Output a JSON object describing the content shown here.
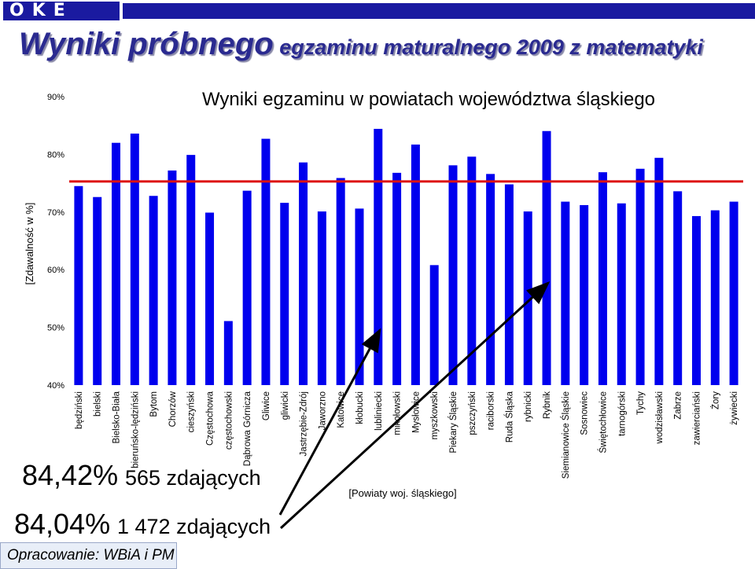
{
  "header": {
    "logo_text": "OKE",
    "title_main": "Wyniki próbnego",
    "title_rest": " egzaminu maturalnego 2009 z matematyki",
    "accent_color": "#1a1aa0"
  },
  "chart_data": {
    "type": "bar",
    "title": "Wyniki egzaminu w powiatach województwa śląskiego",
    "xlabel": "[Powiaty woj. śląskiego]",
    "ylabel": "[Zdawalność w %]",
    "ylim": [
      40,
      90
    ],
    "yticks": [
      "40%",
      "50%",
      "60%",
      "70%",
      "80%",
      "90%"
    ],
    "ytick_values": [
      40,
      50,
      60,
      70,
      80,
      90
    ],
    "reference_line": 75.3,
    "bar_color": "#0000ee",
    "reference_color": "#dd1111",
    "categories": [
      "będziński",
      "bielski",
      "Bielsko-Biała",
      "bieruńsko-lędziński",
      "Bytom",
      "Chorzów",
      "cieszyński",
      "Częstochowa",
      "częstochowski",
      "Dąbrowa Górnicza",
      "Gliwice",
      "gliwicki",
      "Jastrzębie-Zdrój",
      "Jaworzno",
      "Katowice",
      "kłobucki",
      "lubliniecki",
      "mikołowski",
      "Mysłowice",
      "myszkowski",
      "Piekary Śląskie",
      "pszczyński",
      "raciborski",
      "Ruda Śląska",
      "rybnicki",
      "Rybnik",
      "Siemianowice Śląskie",
      "Sosnowiec",
      "Świętochłowice",
      "tarnogórski",
      "Tychy",
      "wodzisławski",
      "Zabrze",
      "zawierciański",
      "Żory",
      "żywiecki"
    ],
    "values": [
      74.5,
      72.6,
      82.0,
      83.6,
      72.8,
      77.2,
      79.9,
      69.9,
      51.1,
      73.7,
      82.7,
      71.6,
      78.6,
      70.1,
      75.9,
      70.6,
      84.42,
      76.8,
      81.7,
      60.8,
      78.1,
      79.6,
      76.6,
      74.8,
      70.1,
      84.04,
      71.8,
      71.2,
      76.9,
      71.5,
      77.5,
      79.4,
      73.6,
      69.3,
      70.3,
      71.8
    ]
  },
  "annotations": [
    {
      "pct": "84,42%",
      "count": "565 zdających"
    },
    {
      "pct": "84,04%",
      "count": "1 472 zdających"
    }
  ],
  "footer": {
    "credit": "Opracowanie: WBiA i PM"
  }
}
